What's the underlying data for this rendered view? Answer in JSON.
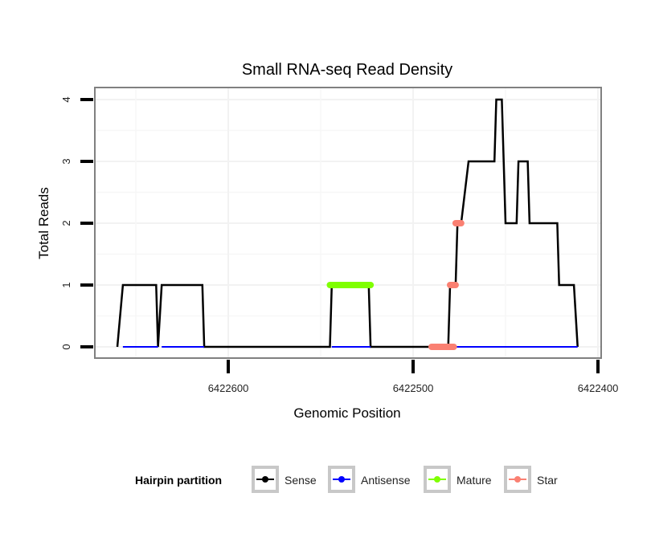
{
  "chart_data": {
    "type": "line",
    "title": "Small RNA-seq Read Density",
    "xlabel": "Genomic Position",
    "ylabel": "Total Reads",
    "x_reversed": true,
    "xlim": [
      6422660,
      6422400
    ],
    "ylim": [
      0,
      4
    ],
    "x_ticks": [
      6422600,
      6422500,
      6422400
    ],
    "x_tick_labels": [
      "6422600",
      "6422500",
      "6422400"
    ],
    "y_ticks": [
      0,
      1,
      2,
      3,
      4
    ],
    "y_tick_labels": [
      "0",
      "1",
      "2",
      "3",
      "4"
    ],
    "grid": true,
    "legend": {
      "title": "Hairpin partition",
      "placement": "bottom",
      "entries": [
        {
          "name": "Sense",
          "color": "#000000"
        },
        {
          "name": "Antisense",
          "color": "#0000ff"
        },
        {
          "name": "Mature",
          "color": "#7fff00"
        },
        {
          "name": "Star",
          "color": "#fa8072"
        }
      ]
    },
    "series": [
      {
        "name": "Sense",
        "color": "#000000",
        "points": [
          [
            6422660,
            0
          ],
          [
            6422657,
            1
          ],
          [
            6422639,
            1
          ],
          [
            6422638,
            0
          ],
          [
            6422636,
            1
          ],
          [
            6422614,
            1
          ],
          [
            6422613,
            0
          ],
          [
            6422545,
            0
          ],
          [
            6422544,
            1
          ],
          [
            6422524,
            1
          ],
          [
            6422523,
            0
          ],
          [
            6422481,
            0
          ],
          [
            6422480,
            1
          ],
          [
            6422477,
            1
          ],
          [
            6422476,
            2
          ],
          [
            6422474,
            2
          ],
          [
            6422470,
            3
          ],
          [
            6422456,
            3
          ],
          [
            6422455,
            4
          ],
          [
            6422452,
            4
          ],
          [
            6422450,
            2
          ],
          [
            6422444,
            2
          ],
          [
            6422443,
            3
          ],
          [
            6422438,
            3
          ],
          [
            6422437,
            2
          ],
          [
            6422422,
            2
          ],
          [
            6422421,
            1
          ],
          [
            6422413,
            1
          ],
          [
            6422411,
            0
          ]
        ]
      },
      {
        "name": "Antisense",
        "color": "#0000ff",
        "segments": [
          {
            "from": 6422657,
            "to": 6422638,
            "y": 0
          },
          {
            "from": 6422636,
            "to": 6422613,
            "y": 0
          },
          {
            "from": 6422544,
            "to": 6422523,
            "y": 0
          },
          {
            "from": 6422480,
            "to": 6422411,
            "y": 0
          }
        ]
      },
      {
        "name": "Mature",
        "color": "#7fff00",
        "segments": [
          {
            "from": 6422545,
            "to": 6422523,
            "y": 1
          }
        ]
      },
      {
        "name": "Star",
        "color": "#fa8072",
        "segments": [
          {
            "from": 6422490,
            "to": 6422478,
            "y": 0
          },
          {
            "from": 6422480,
            "to": 6422477,
            "y": 1
          },
          {
            "from": 6422477,
            "to": 6422474,
            "y": 2
          }
        ]
      }
    ]
  }
}
